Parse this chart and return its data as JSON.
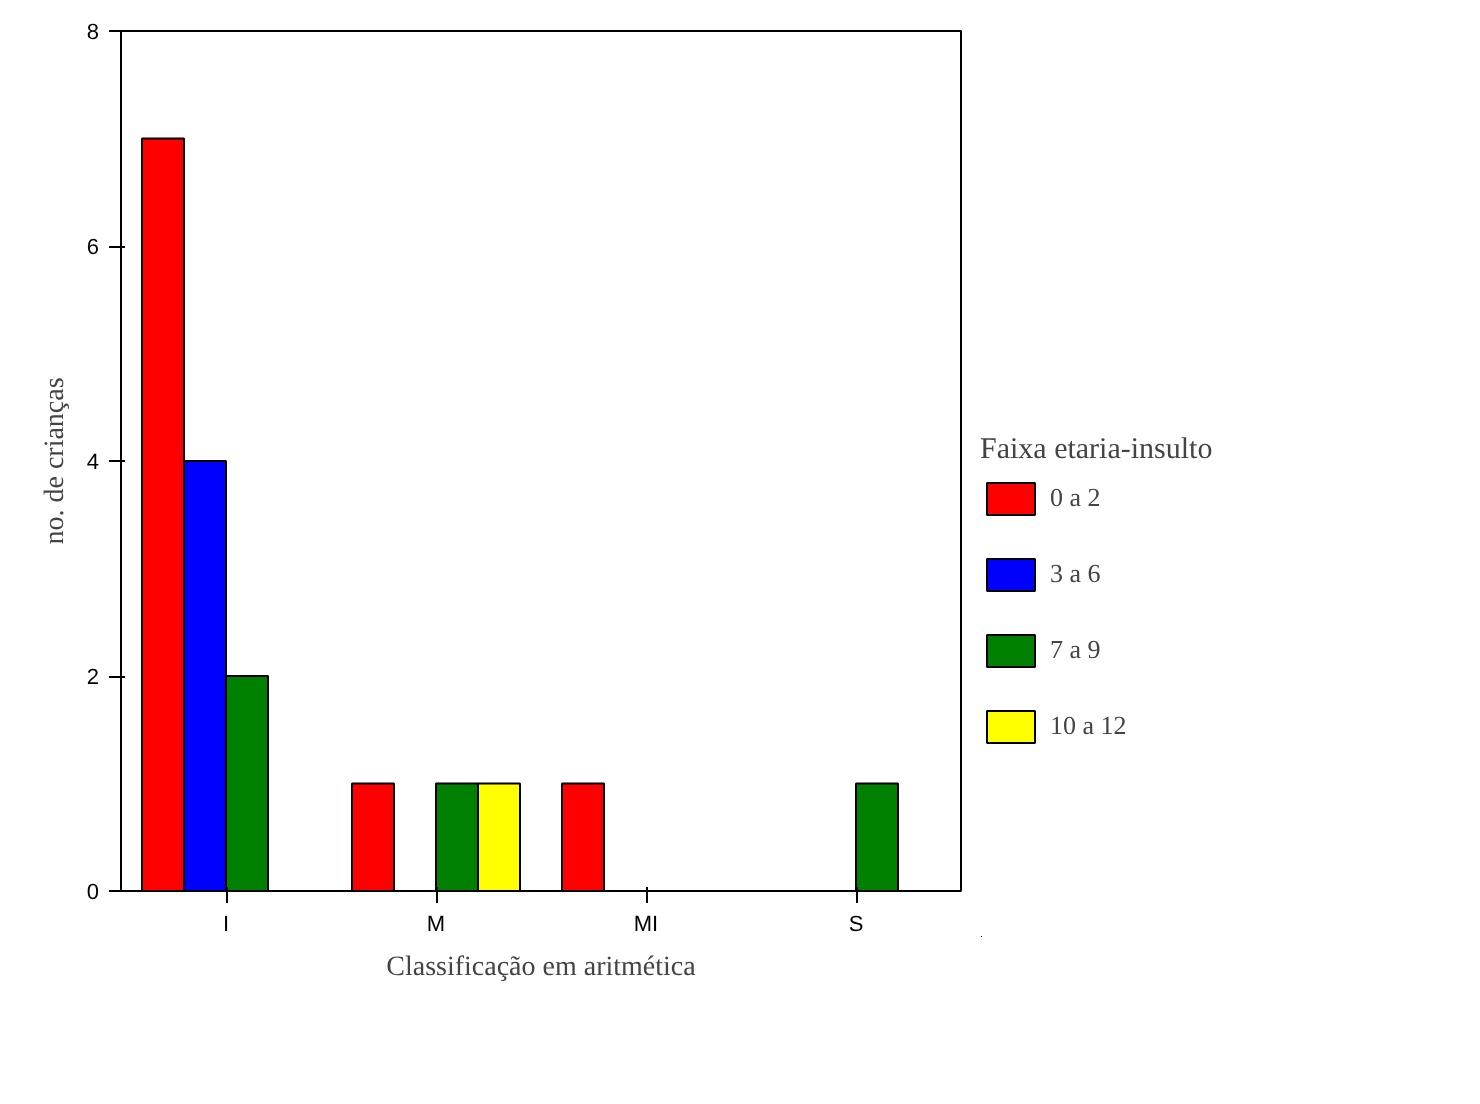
{
  "chart_data": {
    "type": "bar",
    "xlabel": "Classificação em aritmética",
    "ylabel": "no. de crianças",
    "legend_title": "Faixa etaria-insulto",
    "categories": [
      "I",
      "M",
      "MI",
      "S"
    ],
    "series": [
      {
        "name": "0 a 2",
        "color": "#ff0000",
        "values": [
          7,
          1,
          1,
          0
        ]
      },
      {
        "name": "3 a 6",
        "color": "#0000ff",
        "values": [
          4,
          0,
          0,
          0
        ]
      },
      {
        "name": "7 a 9",
        "color": "#008000",
        "values": [
          2,
          1,
          0,
          1
        ]
      },
      {
        "name": "10 a 12",
        "color": "#ffff00",
        "values": [
          0,
          1,
          0,
          0
        ]
      }
    ],
    "ylim": [
      0,
      8
    ],
    "yticks": [
      0,
      2,
      4,
      6,
      8
    ],
    "grid": false,
    "legend": "right"
  }
}
